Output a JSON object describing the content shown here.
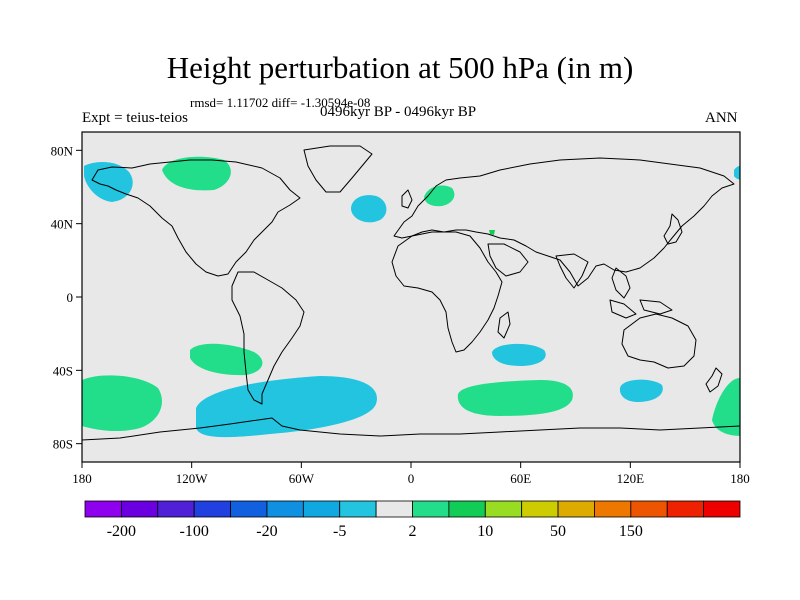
{
  "title": "Height perturbation at 500 hPa (in m)",
  "stats": "rmsd= 1.11702 diff= -1.30594e-08",
  "left_label": "Expt = teius-teios",
  "center_label": "0496kyr BP - 0496kyr BP",
  "right_label": "ANN",
  "lat_ticks": [
    "80N",
    "40N",
    "0",
    "40S",
    "80S"
  ],
  "lat_values": [
    80,
    40,
    0,
    -40,
    -80
  ],
  "lon_ticks": [
    "180",
    "120W",
    "60W",
    "0",
    "60E",
    "120E",
    "180"
  ],
  "lon_values": [
    -180,
    -120,
    -60,
    0,
    60,
    120,
    180
  ],
  "map_extent": {
    "lon": [
      -180,
      180
    ],
    "lat": [
      -90,
      90
    ]
  },
  "colors": {
    "ocean_fill": "#e8e8e8",
    "land_outline": "#000000",
    "light_blue": "#22c4e0",
    "light_green": "#22dd8a",
    "dark_green": "#11cc55"
  },
  "anomaly_regions": [
    {
      "label": "NE Pacific / Alaska",
      "category": "light_blue",
      "lon": -160,
      "lat": 65
    },
    {
      "label": "Canadian Arctic",
      "category": "light_green",
      "lon": -103,
      "lat": 70
    },
    {
      "label": "North Atlantic",
      "category": "light_blue",
      "lon": -22,
      "lat": 49
    },
    {
      "label": "Scandinavia / Baltic",
      "category": "light_green",
      "lon": 16,
      "lat": 57
    },
    {
      "label": "Eastern Mediterranean",
      "category": "dark_green",
      "lon": 46,
      "lat": 35
    },
    {
      "label": "Far NE Pacific",
      "category": "light_blue",
      "lon": 180,
      "lat": 68
    },
    {
      "label": "South Pacific",
      "category": "light_green",
      "lon": -100,
      "lat": -35
    },
    {
      "label": "SW Pacific",
      "category": "light_green",
      "lon": -160,
      "lat": -60
    },
    {
      "label": "Drake Passage / SE Pacific",
      "category": "light_blue",
      "lon": -72,
      "lat": -65
    },
    {
      "label": "SW Indian Ocean",
      "category": "light_blue",
      "lon": 62,
      "lat": -32
    },
    {
      "label": "Southern Indian Ocean",
      "category": "light_green",
      "lon": 63,
      "lat": -58
    },
    {
      "label": "South of Australia",
      "category": "light_blue",
      "lon": 130,
      "lat": -53
    },
    {
      "label": "SE of New Zealand",
      "category": "light_green",
      "lon": 177,
      "lat": -63
    }
  ],
  "colorbar": {
    "colors": [
      "#8e00ee",
      "#6a00e0",
      "#5020d8",
      "#2040e0",
      "#1060e0",
      "#1090e0",
      "#10a8e0",
      "#22c4e0",
      "#e8e8e8",
      "#22dd8a",
      "#11cc55",
      "#99dd22",
      "#cccc00",
      "#ddaa00",
      "#ee7700",
      "#ee5500",
      "#ee2200",
      "#ee0000"
    ],
    "labels": [
      "-200",
      "-100",
      "-20",
      "-5",
      "2",
      "10",
      "50",
      "150"
    ]
  }
}
